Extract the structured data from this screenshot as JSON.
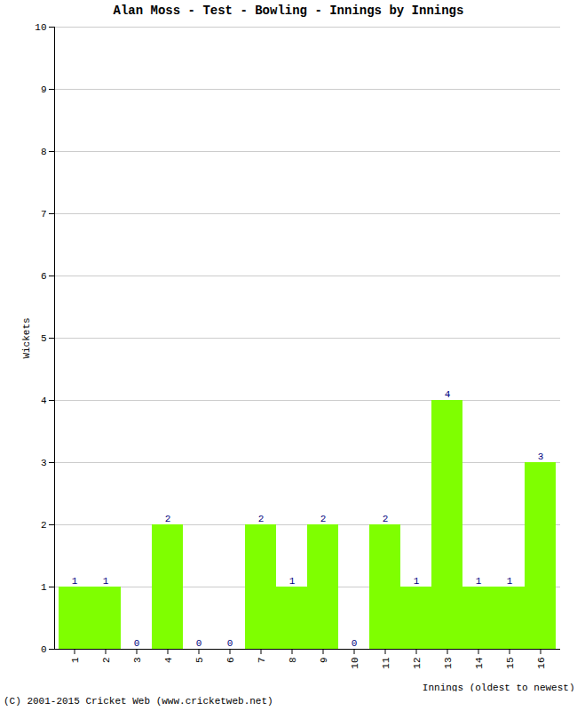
{
  "chart_data": {
    "type": "bar",
    "title": "Alan Moss - Test - Bowling - Innings by Innings",
    "x_label": "Innings (oldest to newest)",
    "y_label": "Wickets",
    "annotations": [
      "(C) 2001-2015 Cricket Web (www.cricketweb.net)"
    ],
    "categories": [
      "1",
      "2",
      "3",
      "4",
      "5",
      "6",
      "7",
      "8",
      "9",
      "10",
      "11",
      "12",
      "13",
      "14",
      "15",
      "16"
    ],
    "values": [
      1,
      1,
      0,
      2,
      0,
      0,
      2,
      1,
      2,
      0,
      2,
      1,
      4,
      1,
      1,
      3
    ],
    "color": "#7fff00",
    "ylim": [
      0,
      10
    ],
    "yticks": [
      0,
      1,
      2,
      3,
      4,
      5,
      6,
      7,
      8,
      9,
      10
    ],
    "grid": true,
    "data_labels": true
  }
}
